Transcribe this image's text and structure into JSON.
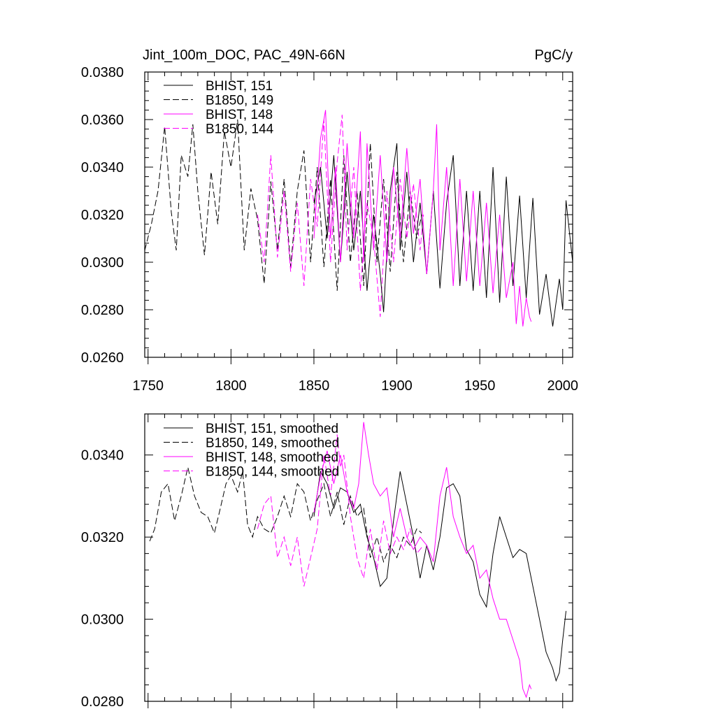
{
  "chart_data": [
    {
      "type": "line",
      "title_left": "Jint_100m_DOC, PAC_49N-66N",
      "title_right": "PgC/y",
      "xlim": [
        1748,
        2006
      ],
      "ylim": [
        0.026,
        0.038
      ],
      "x_ticks": [
        1750,
        1800,
        1850,
        1900,
        1950,
        2000
      ],
      "x_tick_labels": [
        "1750",
        "1800",
        "1850",
        "1900",
        "1950",
        "2000"
      ],
      "y_ticks": [
        0.026,
        0.028,
        0.03,
        0.032,
        0.034,
        0.036,
        0.038
      ],
      "y_tick_labels": [
        "0.0260",
        "0.0280",
        "0.0300",
        "0.0320",
        "0.0340",
        "0.0360",
        "0.0380"
      ],
      "legend": [
        {
          "label": "BHIST, 151",
          "color": "#000000",
          "dash": "solid"
        },
        {
          "label": "B1850, 149",
          "color": "#000000",
          "dash": "dashed"
        },
        {
          "label": "BHIST, 148",
          "color": "#ff00ff",
          "dash": "solid"
        },
        {
          "label": "B1850, 144",
          "color": "#ff00ff",
          "dash": "dashed"
        }
      ],
      "series": [
        {
          "name": "B1850, 149",
          "color": "#000000",
          "dash": "dashed",
          "x": [
            1748,
            1752,
            1756,
            1760,
            1764,
            1767,
            1770,
            1774,
            1777,
            1780,
            1784,
            1788,
            1792,
            1796,
            1800,
            1804,
            1808,
            1812,
            1816,
            1820,
            1824,
            1828,
            1832,
            1836,
            1840,
            1844,
            1848,
            1852,
            1856,
            1860,
            1864,
            1868,
            1872,
            1876,
            1880,
            1884,
            1888,
            1892,
            1896,
            1900,
            1904,
            1908,
            1912,
            1915
          ],
          "y": [
            0.0305,
            0.0316,
            0.033,
            0.0357,
            0.0321,
            0.0305,
            0.0345,
            0.0336,
            0.0358,
            0.033,
            0.0303,
            0.0338,
            0.0316,
            0.0355,
            0.034,
            0.036,
            0.0305,
            0.0331,
            0.0318,
            0.0291,
            0.0334,
            0.0305,
            0.0335,
            0.0298,
            0.033,
            0.0347,
            0.03,
            0.034,
            0.0298,
            0.0335,
            0.0288,
            0.0345,
            0.03,
            0.033,
            0.029,
            0.035,
            0.03,
            0.0335,
            0.0296,
            0.0338,
            0.03,
            0.033,
            0.031,
            0.032
          ]
        },
        {
          "name": "B1850, 144",
          "color": "#ff00ff",
          "dash": "dashed",
          "x": [
            1816,
            1820,
            1824,
            1828,
            1832,
            1836,
            1840,
            1844,
            1848,
            1852,
            1856,
            1860,
            1864,
            1867,
            1870,
            1874,
            1878,
            1882,
            1886,
            1890,
            1894,
            1898,
            1902,
            1906,
            1910,
            1914,
            1916
          ],
          "y": [
            0.032,
            0.03,
            0.0345,
            0.0302,
            0.033,
            0.0296,
            0.0325,
            0.029,
            0.0335,
            0.0315,
            0.036,
            0.03,
            0.0342,
            0.0362,
            0.0305,
            0.034,
            0.0288,
            0.0325,
            0.031,
            0.0277,
            0.033,
            0.03,
            0.0335,
            0.031,
            0.0333,
            0.0305,
            0.032
          ]
        },
        {
          "name": "BHIST, 151",
          "color": "#000000",
          "dash": "solid",
          "x": [
            1850,
            1854,
            1858,
            1862,
            1866,
            1870,
            1874,
            1878,
            1882,
            1886,
            1890,
            1892,
            1896,
            1900,
            1902,
            1906,
            1910,
            1914,
            1918,
            1922,
            1926,
            1930,
            1934,
            1938,
            1942,
            1946,
            1950,
            1954,
            1958,
            1962,
            1966,
            1970,
            1974,
            1978,
            1982,
            1986,
            1990,
            1994,
            1998,
            2000,
            2002,
            2006
          ],
          "y": [
            0.0325,
            0.034,
            0.031,
            0.0345,
            0.03,
            0.0338,
            0.0305,
            0.033,
            0.0288,
            0.032,
            0.0295,
            0.0279,
            0.033,
            0.035,
            0.0305,
            0.0338,
            0.03,
            0.0325,
            0.0295,
            0.033,
            0.0289,
            0.0325,
            0.0345,
            0.029,
            0.033,
            0.0288,
            0.033,
            0.0285,
            0.034,
            0.0283,
            0.0336,
            0.029,
            0.0328,
            0.0285,
            0.0327,
            0.0278,
            0.0295,
            0.0273,
            0.0293,
            0.028,
            0.0326,
            0.03
          ]
        },
        {
          "name": "BHIST, 148",
          "color": "#ff00ff",
          "dash": "solid",
          "x": [
            1850,
            1854,
            1857,
            1860,
            1863,
            1866,
            1870,
            1874,
            1878,
            1880,
            1882,
            1886,
            1890,
            1894,
            1898,
            1902,
            1906,
            1910,
            1914,
            1918,
            1922,
            1924,
            1926,
            1930,
            1934,
            1938,
            1942,
            1946,
            1950,
            1954,
            1958,
            1962,
            1966,
            1970,
            1972,
            1974,
            1976,
            1978,
            1980,
            1981
          ],
          "y": [
            0.031,
            0.0352,
            0.0364,
            0.031,
            0.034,
            0.03,
            0.035,
            0.031,
            0.0355,
            0.03,
            0.035,
            0.0305,
            0.0345,
            0.03,
            0.034,
            0.031,
            0.0348,
            0.0312,
            0.0335,
            0.0295,
            0.033,
            0.0358,
            0.0305,
            0.034,
            0.029,
            0.0335,
            0.0292,
            0.033,
            0.029,
            0.0325,
            0.0287,
            0.032,
            0.0285,
            0.03,
            0.0274,
            0.029,
            0.0273,
            0.0285,
            0.0277,
            0.0275
          ]
        }
      ]
    },
    {
      "type": "line",
      "xlim": [
        1748,
        2006
      ],
      "ylim": [
        0.028,
        0.035
      ],
      "x_ticks": [
        1750,
        1800,
        1850,
        1900,
        1950,
        2000
      ],
      "y_ticks": [
        0.028,
        0.03,
        0.032,
        0.034
      ],
      "y_tick_labels": [
        "0.0280",
        "0.0300",
        "0.0320",
        "0.0340"
      ],
      "legend": [
        {
          "label": "BHIST, 151, smoothed",
          "color": "#000000",
          "dash": "solid"
        },
        {
          "label": "B1850, 149, smoothed",
          "color": "#000000",
          "dash": "dashed"
        },
        {
          "label": "BHIST, 148, smoothed",
          "color": "#ff00ff",
          "dash": "solid"
        },
        {
          "label": "B1850, 144, smoothed",
          "color": "#ff00ff",
          "dash": "dashed"
        }
      ],
      "series": [
        {
          "name": "B1850, 149, smoothed",
          "color": "#000000",
          "dash": "dashed",
          "x": [
            1751,
            1754,
            1758,
            1762,
            1766,
            1770,
            1774,
            1778,
            1782,
            1786,
            1790,
            1793,
            1797,
            1800,
            1804,
            1807,
            1810,
            1813,
            1816,
            1820,
            1824,
            1828,
            1832,
            1836,
            1840,
            1844,
            1848,
            1852,
            1856,
            1860,
            1864,
            1868,
            1872,
            1876,
            1880,
            1884,
            1888,
            1892,
            1896,
            1900,
            1904,
            1908,
            1912,
            1915
          ],
          "y": [
            0.0319,
            0.0322,
            0.0331,
            0.0333,
            0.0324,
            0.033,
            0.0337,
            0.033,
            0.0326,
            0.0325,
            0.0321,
            0.0326,
            0.0333,
            0.0335,
            0.0331,
            0.0336,
            0.0323,
            0.032,
            0.0325,
            0.0322,
            0.0321,
            0.0325,
            0.033,
            0.0325,
            0.0333,
            0.0331,
            0.0324,
            0.0329,
            0.0333,
            0.0325,
            0.0331,
            0.0323,
            0.033,
            0.0325,
            0.0327,
            0.0315,
            0.032,
            0.0314,
            0.0318,
            0.0315,
            0.032,
            0.0318,
            0.0322,
            0.0321
          ]
        },
        {
          "name": "B1850, 144, smoothed",
          "color": "#ff00ff",
          "dash": "dashed",
          "x": [
            1816,
            1820,
            1824,
            1828,
            1832,
            1836,
            1840,
            1844,
            1848,
            1852,
            1856,
            1860,
            1864,
            1866,
            1868,
            1872,
            1876,
            1880,
            1884,
            1888,
            1892,
            1896,
            1900,
            1904,
            1908,
            1912,
            1916
          ],
          "y": [
            0.0322,
            0.0328,
            0.033,
            0.0315,
            0.032,
            0.0313,
            0.032,
            0.0308,
            0.0315,
            0.0322,
            0.034,
            0.033,
            0.0345,
            0.0337,
            0.034,
            0.0325,
            0.0315,
            0.031,
            0.0322,
            0.0312,
            0.0324,
            0.0316,
            0.032,
            0.0317,
            0.0322,
            0.0316,
            0.0318
          ]
        },
        {
          "name": "BHIST, 151, smoothed",
          "color": "#000000",
          "dash": "solid",
          "x": [
            1850,
            1854,
            1858,
            1862,
            1866,
            1870,
            1874,
            1878,
            1882,
            1886,
            1890,
            1894,
            1898,
            1902,
            1906,
            1910,
            1914,
            1918,
            1922,
            1926,
            1930,
            1934,
            1938,
            1942,
            1946,
            1950,
            1954,
            1958,
            1962,
            1966,
            1970,
            1974,
            1978,
            1982,
            1986,
            1990,
            1994,
            1996,
            1998,
            2000,
            2002
          ],
          "y": [
            0.0325,
            0.0336,
            0.0333,
            0.0327,
            0.0332,
            0.0331,
            0.0326,
            0.0328,
            0.032,
            0.0315,
            0.0308,
            0.031,
            0.0324,
            0.0336,
            0.0328,
            0.032,
            0.031,
            0.0318,
            0.0312,
            0.032,
            0.0332,
            0.0333,
            0.033,
            0.0317,
            0.0314,
            0.0306,
            0.0303,
            0.0316,
            0.0325,
            0.032,
            0.0315,
            0.0317,
            0.0316,
            0.0308,
            0.03,
            0.0292,
            0.0288,
            0.0285,
            0.0287,
            0.0295,
            0.0302
          ]
        },
        {
          "name": "BHIST, 148, smoothed",
          "color": "#ff00ff",
          "dash": "solid",
          "x": [
            1850,
            1854,
            1858,
            1862,
            1866,
            1870,
            1874,
            1877,
            1880,
            1883,
            1886,
            1890,
            1894,
            1898,
            1902,
            1906,
            1910,
            1914,
            1918,
            1922,
            1926,
            1930,
            1934,
            1938,
            1942,
            1946,
            1950,
            1954,
            1958,
            1962,
            1966,
            1970,
            1974,
            1976,
            1978,
            1980,
            1981
          ],
          "y": [
            0.0326,
            0.0335,
            0.0341,
            0.0333,
            0.034,
            0.0331,
            0.0327,
            0.0333,
            0.0348,
            0.034,
            0.0333,
            0.033,
            0.0332,
            0.032,
            0.0327,
            0.032,
            0.0317,
            0.032,
            0.0318,
            0.0314,
            0.033,
            0.0337,
            0.0325,
            0.032,
            0.0316,
            0.0318,
            0.031,
            0.0312,
            0.0305,
            0.03,
            0.03,
            0.0295,
            0.029,
            0.0283,
            0.0281,
            0.0284,
            0.0283
          ]
        }
      ]
    }
  ]
}
